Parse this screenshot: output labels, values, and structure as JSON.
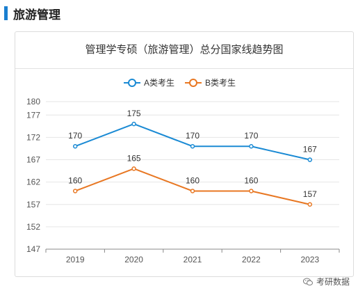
{
  "section": {
    "title": "旅游管理"
  },
  "chart_data": {
    "type": "line",
    "title": "管理学专硕（旅游管理）总分国家线趋势图",
    "xlabel": "",
    "ylabel": "",
    "categories": [
      "2019",
      "2020",
      "2021",
      "2022",
      "2023"
    ],
    "yticks": [
      147,
      152,
      157,
      162,
      167,
      172,
      177,
      180
    ],
    "ylim": [
      147,
      180
    ],
    "grid": true,
    "legend_position": "top-center",
    "series": [
      {
        "name": "A类考生",
        "values": [
          170,
          175,
          170,
          170,
          167
        ],
        "color": "#1a8ad4"
      },
      {
        "name": "B类考生",
        "values": [
          160,
          165,
          160,
          160,
          157
        ],
        "color": "#e87722"
      }
    ]
  },
  "watermark": {
    "text": "考研数据"
  }
}
